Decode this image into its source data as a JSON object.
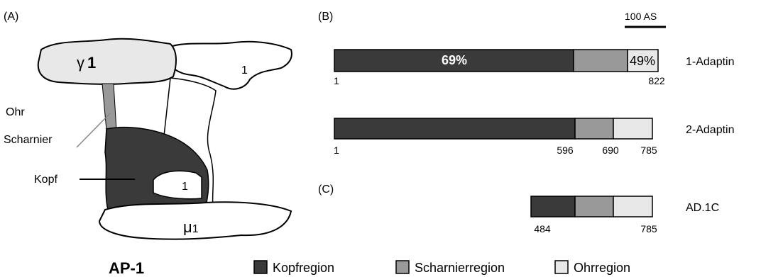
{
  "panel_a": {
    "label": "(A)",
    "gamma": "γ",
    "gamma_num": "1",
    "ear_2": "1",
    "ohr": "Ohr",
    "scharnier": "Scharnier",
    "kopf": "Kopf",
    "core_1": "1",
    "mu": "μ",
    "mu_num": "1",
    "title": "AP-1"
  },
  "panel_b": {
    "label": "(B)",
    "scale": "100 AS",
    "rows": [
      {
        "name": "1-Adaptin",
        "pct_head": "69%",
        "pct_ear": "49%",
        "start": 1,
        "end": 822
      },
      {
        "name": "2-Adaptin",
        "start": 1,
        "head_end": 596,
        "hinge_end": 690,
        "end": 785
      }
    ]
  },
  "panel_c": {
    "label": "(C)",
    "name": "AD.1C",
    "start": 484,
    "end": 785
  },
  "legend": [
    "Kopfregion",
    "Scharnierregion",
    "Ohrregion"
  ]
}
